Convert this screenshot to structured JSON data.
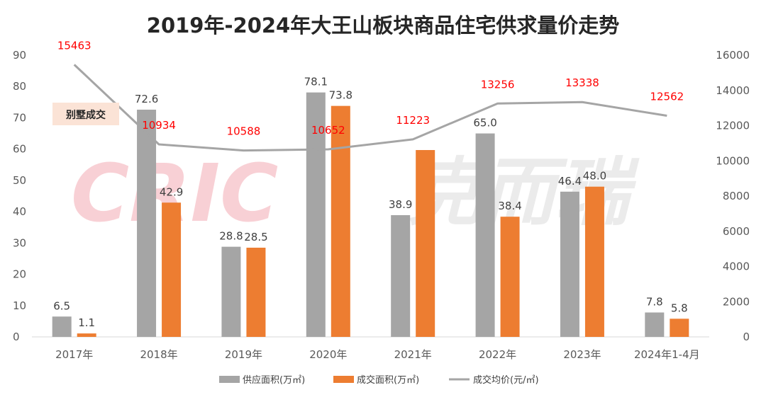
{
  "chart_data": {
    "type": "bar",
    "title": "2019年-2024年大王山板块商品住宅供求量价走势",
    "categories": [
      "2017年",
      "2018年",
      "2019年",
      "2020年",
      "2021年",
      "2022年",
      "2023年",
      "2024年1-4月"
    ],
    "series": [
      {
        "name": "供应面积(万㎡)",
        "type": "bar",
        "axis": "left",
        "color": "#a5a5a5",
        "values": [
          6.5,
          72.6,
          28.8,
          78.1,
          38.9,
          65.0,
          46.4,
          7.8
        ],
        "labels": [
          "6.5",
          "72.6",
          "28.8",
          "78.1",
          "38.9",
          "65.0",
          "46.4",
          "7.8"
        ]
      },
      {
        "name": "成交面积(万㎡)",
        "type": "bar",
        "axis": "left",
        "color": "#ed7d31",
        "values": [
          1.1,
          42.9,
          28.5,
          73.8,
          59.7,
          38.4,
          48.0,
          5.8
        ],
        "labels": [
          "1.1",
          "42.9",
          "28.5",
          "73.8",
          null,
          "38.4",
          "48.0",
          "5.8"
        ]
      },
      {
        "name": "成交均价(元/㎡)",
        "type": "line",
        "axis": "right",
        "color": "#a5a5a5",
        "values": [
          15463,
          10934,
          10588,
          10652,
          11223,
          13256,
          13338,
          12562
        ],
        "labels": [
          "15463",
          "10934",
          "10588",
          "10652",
          "11223",
          "13256",
          "13338",
          "12562"
        ]
      }
    ],
    "y_left": {
      "min": 0,
      "max": 90,
      "ticks": [
        "0",
        "10",
        "20",
        "30",
        "40",
        "50",
        "60",
        "70",
        "80",
        "90"
      ]
    },
    "y_right": {
      "min": 0,
      "max": 16000,
      "ticks": [
        "0",
        "2000",
        "4000",
        "6000",
        "8000",
        "10000",
        "12000",
        "14000",
        "16000"
      ]
    },
    "legend_position": "bottom",
    "annotation": "别墅成交",
    "watermark": "CRIC 克而瑞",
    "colors": {
      "supply": "#a5a5a5",
      "deal": "#ed7d31",
      "price_line": "#a5a5a5",
      "price_label": "#ff0000",
      "note_bg": "#fbe3d6",
      "watermark": "#f6c9cf"
    }
  }
}
